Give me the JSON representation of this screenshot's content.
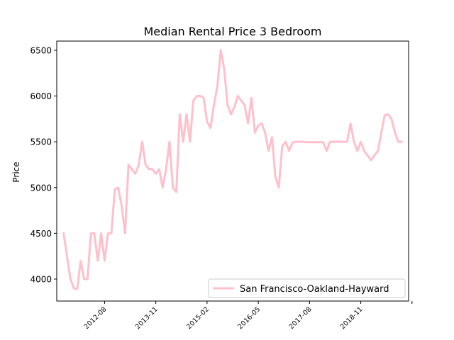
{
  "chart_data": {
    "type": "line",
    "title": "Median Rental Price 3 Bedroom",
    "xlabel": "",
    "ylabel": "Price",
    "legend_position": "lower-right",
    "grid": false,
    "line_color": "#ffc0cb",
    "x_range": [
      "2011-06",
      "2020-01"
    ],
    "ylim": [
      3760,
      6600
    ],
    "yticks": [
      4000,
      4500,
      5000,
      5500,
      6000,
      6500
    ],
    "xticks": [
      {
        "date": "2012-08",
        "label": "2012-08"
      },
      {
        "date": "2013-11",
        "label": "2013-11"
      },
      {
        "date": "2015-02",
        "label": "2015-02"
      },
      {
        "date": "2016-05",
        "label": "2016-05"
      },
      {
        "date": "2017-08",
        "label": "2017-08"
      },
      {
        "date": "2018-11",
        "label": "2018-11"
      },
      {
        "date": "2020-02",
        "label": ""
      }
    ],
    "series": [
      {
        "name": "San Francisco-Oakland-Hayward",
        "points": [
          [
            "2011-08",
            4500
          ],
          [
            "2011-09",
            4250
          ],
          [
            "2011-10",
            4000
          ],
          [
            "2011-11",
            3900
          ],
          [
            "2011-12",
            3890
          ],
          [
            "2012-01",
            4200
          ],
          [
            "2012-02",
            4000
          ],
          [
            "2012-03",
            4000
          ],
          [
            "2012-04",
            4500
          ],
          [
            "2012-05",
            4500
          ],
          [
            "2012-06",
            4200
          ],
          [
            "2012-07",
            4500
          ],
          [
            "2012-08",
            4200
          ],
          [
            "2012-09",
            4500
          ],
          [
            "2012-10",
            4500
          ],
          [
            "2012-11",
            4980
          ],
          [
            "2012-12",
            5000
          ],
          [
            "2013-01",
            4800
          ],
          [
            "2013-02",
            4500
          ],
          [
            "2013-03",
            5250
          ],
          [
            "2013-04",
            5200
          ],
          [
            "2013-05",
            5150
          ],
          [
            "2013-06",
            5250
          ],
          [
            "2013-07",
            5500
          ],
          [
            "2013-08",
            5250
          ],
          [
            "2013-09",
            5200
          ],
          [
            "2013-10",
            5200
          ],
          [
            "2013-11",
            5150
          ],
          [
            "2013-12",
            5200
          ],
          [
            "2014-01",
            5000
          ],
          [
            "2014-02",
            5200
          ],
          [
            "2014-03",
            5500
          ],
          [
            "2014-04",
            5000
          ],
          [
            "2014-05",
            4950
          ],
          [
            "2014-06",
            5800
          ],
          [
            "2014-07",
            5500
          ],
          [
            "2014-08",
            5800
          ],
          [
            "2014-09",
            5500
          ],
          [
            "2014-10",
            5950
          ],
          [
            "2014-11",
            6000
          ],
          [
            "2014-12",
            6000
          ],
          [
            "2015-01",
            5980
          ],
          [
            "2015-02",
            5720
          ],
          [
            "2015-03",
            5650
          ],
          [
            "2015-04",
            5900
          ],
          [
            "2015-05",
            6100
          ],
          [
            "2015-06",
            6500
          ],
          [
            "2015-07",
            6300
          ],
          [
            "2015-08",
            5900
          ],
          [
            "2015-09",
            5800
          ],
          [
            "2015-10",
            5880
          ],
          [
            "2015-11",
            6000
          ],
          [
            "2015-12",
            5950
          ],
          [
            "2016-01",
            5900
          ],
          [
            "2016-02",
            5700
          ],
          [
            "2016-03",
            5980
          ],
          [
            "2016-04",
            5600
          ],
          [
            "2016-05",
            5680
          ],
          [
            "2016-06",
            5700
          ],
          [
            "2016-07",
            5600
          ],
          [
            "2016-08",
            5400
          ],
          [
            "2016-09",
            5550
          ],
          [
            "2016-10",
            5120
          ],
          [
            "2016-11",
            5000
          ],
          [
            "2016-12",
            5450
          ],
          [
            "2017-01",
            5500
          ],
          [
            "2017-02",
            5400
          ],
          [
            "2017-03",
            5490
          ],
          [
            "2017-04",
            5500
          ],
          [
            "2017-05",
            5500
          ],
          [
            "2017-06",
            5500
          ],
          [
            "2017-07",
            5495
          ],
          [
            "2017-08",
            5495
          ],
          [
            "2017-09",
            5495
          ],
          [
            "2017-10",
            5495
          ],
          [
            "2017-11",
            5495
          ],
          [
            "2017-12",
            5495
          ],
          [
            "2018-01",
            5400
          ],
          [
            "2018-02",
            5500
          ],
          [
            "2018-03",
            5500
          ],
          [
            "2018-04",
            5500
          ],
          [
            "2018-05",
            5500
          ],
          [
            "2018-06",
            5500
          ],
          [
            "2018-07",
            5500
          ],
          [
            "2018-08",
            5700
          ],
          [
            "2018-09",
            5500
          ],
          [
            "2018-10",
            5400
          ],
          [
            "2018-11",
            5500
          ],
          [
            "2018-12",
            5400
          ],
          [
            "2019-01",
            5350
          ],
          [
            "2019-02",
            5300
          ],
          [
            "2019-03",
            5350
          ],
          [
            "2019-04",
            5400
          ],
          [
            "2019-05",
            5600
          ],
          [
            "2019-06",
            5790
          ],
          [
            "2019-07",
            5800
          ],
          [
            "2019-08",
            5750
          ],
          [
            "2019-09",
            5600
          ],
          [
            "2019-10",
            5500
          ],
          [
            "2019-11",
            5500
          ]
        ]
      }
    ]
  }
}
